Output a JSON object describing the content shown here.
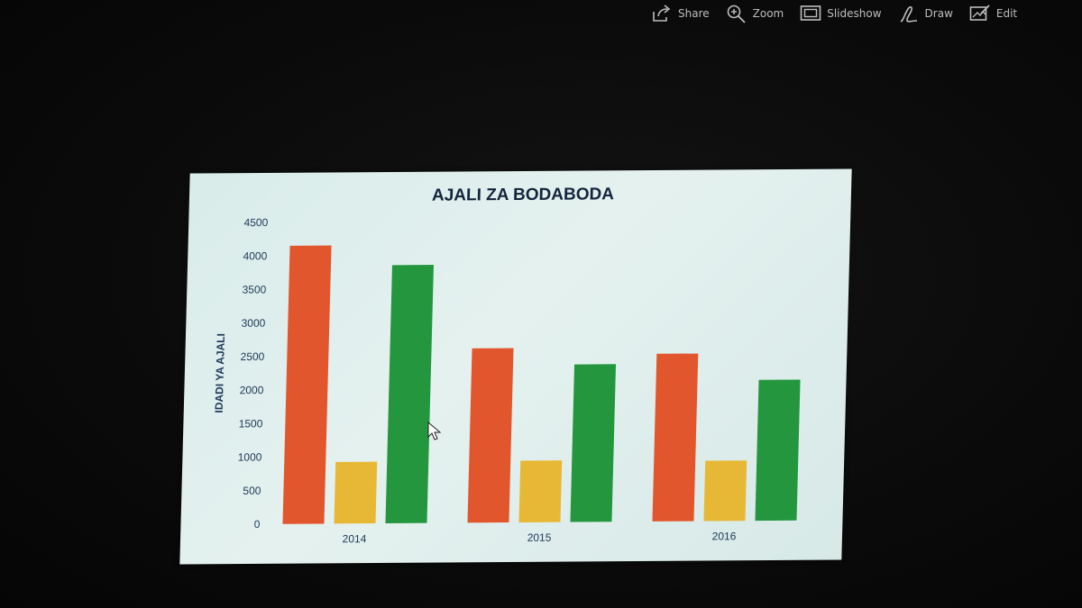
{
  "toolbar": {
    "items": [
      {
        "label": "Share",
        "icon": "share-icon"
      },
      {
        "label": "Zoom",
        "icon": "zoom-icon"
      },
      {
        "label": "Slideshow",
        "icon": "slideshow-icon"
      },
      {
        "label": "Draw",
        "icon": "draw-icon"
      },
      {
        "label": "Edit",
        "icon": "edit-icon"
      }
    ]
  },
  "colors": {
    "series": [
      "#e2562d",
      "#e7b835",
      "#23963e"
    ],
    "text": "#1f3a5a",
    "title": "#14243c"
  },
  "chart_data": {
    "type": "bar",
    "title": "AJALI ZA BODABODA",
    "xlabel": "",
    "ylabel": "IDADI YA AJALI",
    "categories": [
      "2014",
      "2015",
      "2016"
    ],
    "series": [
      {
        "values": [
          4150,
          2600,
          2500
        ]
      },
      {
        "values": [
          920,
          920,
          900
        ]
      },
      {
        "values": [
          3850,
          2350,
          2100
        ]
      }
    ],
    "ylim": [
      0,
      4500
    ],
    "yticks": [
      0,
      500,
      1000,
      1500,
      2000,
      2500,
      3000,
      3500,
      4000,
      4500
    ],
    "grid": false,
    "legend": "none"
  }
}
